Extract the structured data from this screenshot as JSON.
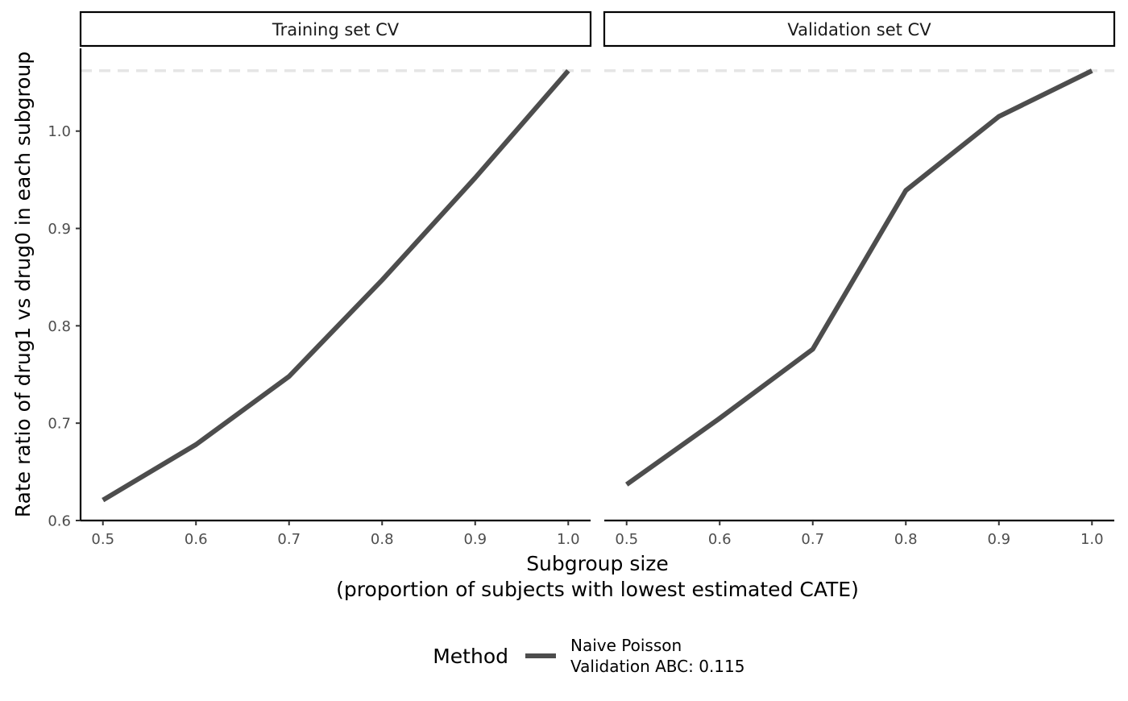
{
  "chart_data": {
    "type": "line",
    "facets": [
      {
        "label": "Training set CV",
        "series": [
          {
            "name": "Naive Poisson\nValidation ABC: 0.115",
            "x": [
              0.5,
              0.6,
              0.7,
              0.8,
              0.9,
              1.0
            ],
            "y": [
              0.621,
              0.678,
              0.748,
              0.847,
              0.952,
              1.062
            ]
          }
        ]
      },
      {
        "label": "Validation set CV",
        "series": [
          {
            "name": "Naive Poisson\nValidation ABC: 0.115",
            "x": [
              0.5,
              0.6,
              0.7,
              0.8,
              0.9,
              1.0
            ],
            "y": [
              0.637,
              0.705,
              0.776,
              0.939,
              1.015,
              1.062
            ]
          }
        ]
      }
    ],
    "reference_line": {
      "y": 1.062,
      "style": "dashed",
      "color": "#e5e5e5"
    },
    "xlabel_line1": "Subgroup size",
    "xlabel_line2": "(proportion of subjects with lowest estimated CATE)",
    "ylabel": "Rate ratio of drug1 vs drug0 in each subgroup",
    "xticks": [
      "0.5",
      "0.6",
      "0.7",
      "0.8",
      "0.9",
      "1.0"
    ],
    "yticks": [
      "0.6",
      "0.7",
      "0.8",
      "0.9",
      "1.0"
    ],
    "xlim": [
      0.476,
      1.024
    ],
    "ylim": [
      0.6,
      1.085
    ],
    "legend": {
      "title": "Method",
      "position": "bottom",
      "entries": [
        {
          "label_line1": "Naive Poisson",
          "label_line2": "Validation ABC: 0.115",
          "color": "#4d4d4d"
        }
      ]
    },
    "line_color": "#4d4d4d",
    "grid": false
  }
}
